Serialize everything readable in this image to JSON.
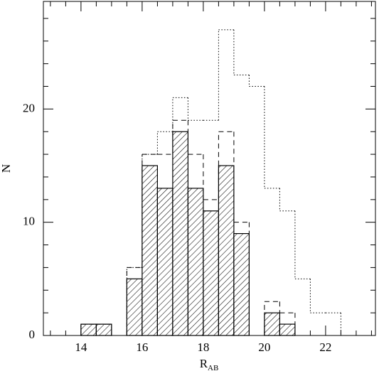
{
  "chart_data": {
    "type": "histogram",
    "bins": [
      14,
      14.5,
      15,
      15.5,
      16,
      16.5,
      17,
      17.5,
      18,
      18.5,
      19,
      19.5,
      20,
      20.5,
      21,
      21.5,
      22,
      22.5
    ],
    "series": [
      {
        "style": "hatched",
        "color": "#000000",
        "values": [
          1,
          1,
          0,
          5,
          15,
          13,
          18,
          13,
          11,
          15,
          9,
          0,
          2,
          1,
          0,
          0,
          0
        ]
      },
      {
        "style": "dashed",
        "color": "#000000",
        "values": [
          1,
          1,
          0,
          6,
          16,
          16,
          19,
          16,
          12,
          18,
          10,
          0,
          3,
          2,
          0,
          0,
          0
        ]
      },
      {
        "style": "dotted",
        "color": "#000000",
        "values": [
          1,
          1,
          0,
          6,
          16,
          18,
          21,
          19,
          19,
          27,
          23,
          22,
          13,
          11,
          5,
          2,
          2
        ]
      }
    ],
    "x_label": {
      "text": "R",
      "subscript": "AB"
    },
    "y_label": "N",
    "xlim": [
      12.77,
      23.63
    ],
    "ylim": [
      0,
      29.5
    ],
    "xticks": [
      14,
      16,
      18,
      20,
      22
    ],
    "xminorticks": [
      13,
      13.5,
      14.5,
      15,
      15.5,
      16.5,
      17,
      17.5,
      18.5,
      19,
      19.5,
      20.5,
      21,
      21.5,
      22.5,
      23,
      23.5
    ],
    "yticks": [
      0,
      10,
      20
    ],
    "yminorticks": [
      2,
      4,
      6,
      8,
      12,
      14,
      16,
      18,
      22,
      24,
      26,
      28
    ]
  }
}
